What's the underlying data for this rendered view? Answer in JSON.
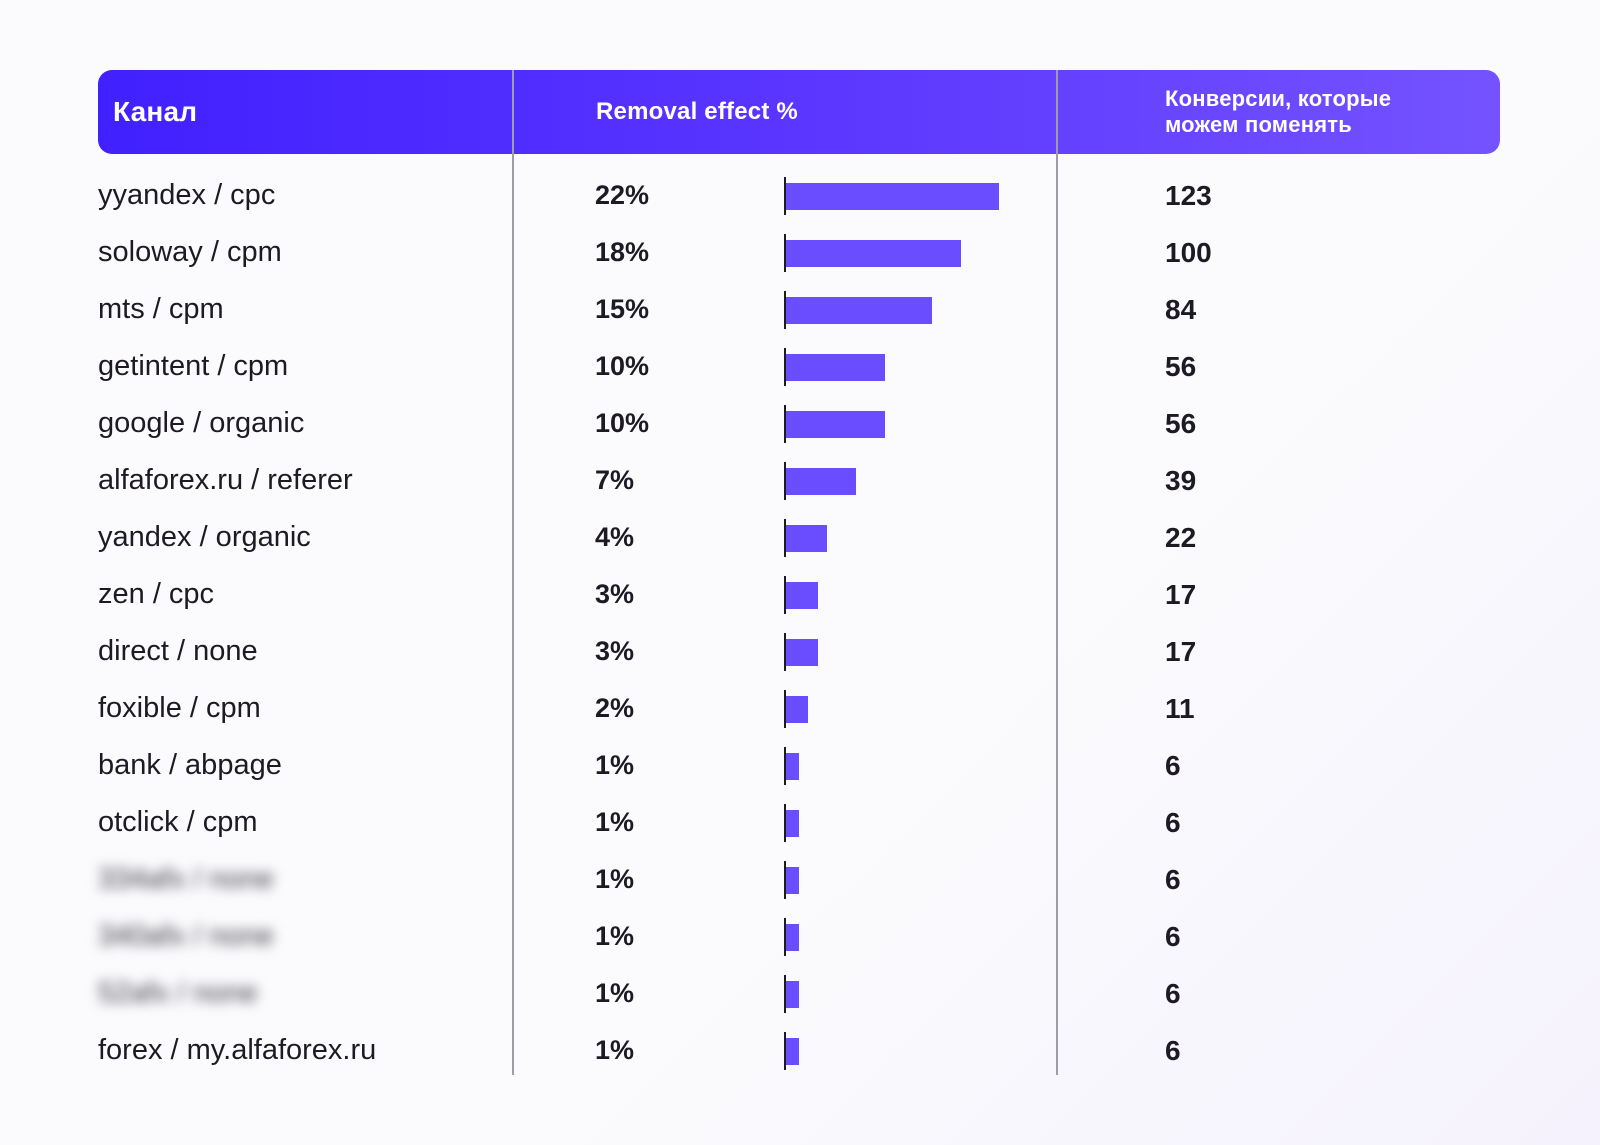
{
  "chart_data": {
    "type": "bar",
    "columns": {
      "channel": "Канал",
      "removal": "Removal effect %",
      "conversions": "Конверсии, которые\nможем поменять"
    },
    "rows": [
      {
        "channel": "yyandex / cpc",
        "removal": 22,
        "removal_label": "22%",
        "conversions": "123"
      },
      {
        "channel": "soloway / cpm",
        "removal": 18,
        "removal_label": "18%",
        "conversions": "100"
      },
      {
        "channel": "mts / cpm",
        "removal": 15,
        "removal_label": "15%",
        "conversions": "84"
      },
      {
        "channel": "getintent / cpm",
        "removal": 10,
        "removal_label": "10%",
        "conversions": "56"
      },
      {
        "channel": "google / organic",
        "removal": 10,
        "removal_label": "10%",
        "conversions": "56"
      },
      {
        "channel": "alfaforex.ru / referer",
        "removal": 7,
        "removal_label": "7%",
        "conversions": "39"
      },
      {
        "channel": "yandex / organic",
        "removal": 4,
        "removal_label": "4%",
        "conversions": "22"
      },
      {
        "channel": "zen / cpc",
        "removal": 3,
        "removal_label": "3%",
        "conversions": "17"
      },
      {
        "channel": "direct / none",
        "removal": 3,
        "removal_label": "3%",
        "conversions": "17"
      },
      {
        "channel": "foxible / cpm",
        "removal": 2,
        "removal_label": "2%",
        "conversions": "11"
      },
      {
        "channel": "bank / abpage",
        "removal": 1,
        "removal_label": "1%",
        "conversions": "6"
      },
      {
        "channel": "otclick / cpm",
        "removal": 1,
        "removal_label": "1%",
        "conversions": "6"
      },
      {
        "channel": "334afx / none",
        "removal": 1,
        "removal_label": "1%",
        "conversions": "6",
        "blurred": true
      },
      {
        "channel": "340afx / none",
        "removal": 1,
        "removal_label": "1%",
        "conversions": "6",
        "blurred": true
      },
      {
        "channel": "52afx / none",
        "removal": 1,
        "removal_label": "1%",
        "conversions": "6",
        "blurred": true
      },
      {
        "channel": "forex / my.alfaforex.ru",
        "removal": 1,
        "removal_label": "1%",
        "conversions": "6"
      }
    ],
    "colors": {
      "bar": "#6a4dff",
      "header_start": "#4120ff",
      "header_end": "#7453ff"
    }
  }
}
